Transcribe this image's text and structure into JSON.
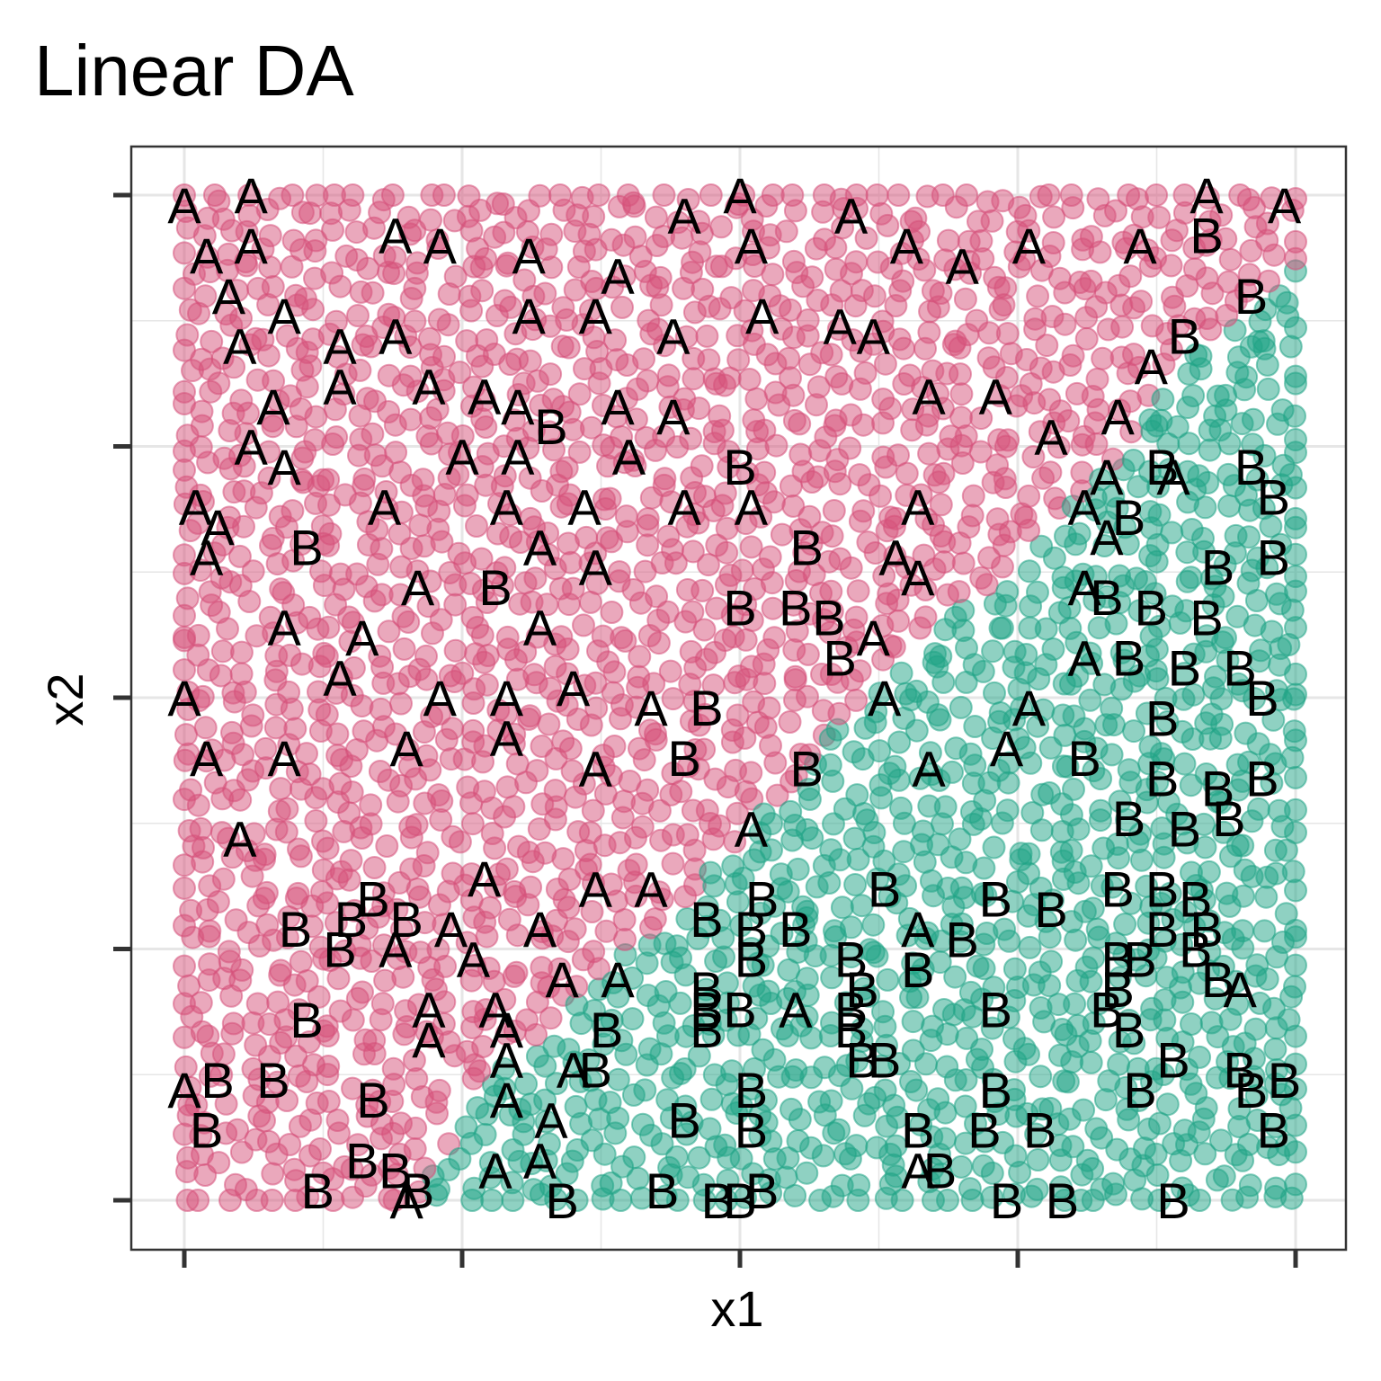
{
  "chart_data": {
    "type": "scatter",
    "title": "Linear DA",
    "xlabel": "x1",
    "ylabel": "x2",
    "xlim": [
      0,
      1
    ],
    "ylim": [
      0,
      1
    ],
    "x_ticks": [
      0,
      0.25,
      0.5,
      0.75,
      1
    ],
    "y_ticks": [
      0,
      0.25,
      0.5,
      0.75,
      1
    ],
    "tick_labels_shown": false,
    "grid": true,
    "legend": "none",
    "regions": [
      {
        "name": "A",
        "color": "#D6517A"
      },
      {
        "name": "B",
        "color": "#20A486"
      }
    ],
    "boundary": [
      [
        0.21,
        0
      ],
      [
        0.26,
        0.1
      ],
      [
        0.33,
        0.18
      ],
      [
        0.45,
        0.3
      ],
      [
        0.55,
        0.42
      ],
      [
        0.65,
        0.55
      ],
      [
        0.74,
        0.62
      ],
      [
        0.84,
        0.74
      ],
      [
        0.92,
        0.86
      ],
      [
        1,
        0.93
      ]
    ],
    "labeled_points": [
      {
        "x": 0.0,
        "y": 0.99,
        "label": "A"
      },
      {
        "x": 0.06,
        "y": 1.0,
        "label": "A"
      },
      {
        "x": 0.02,
        "y": 0.94,
        "label": "A"
      },
      {
        "x": 0.06,
        "y": 0.95,
        "label": "A"
      },
      {
        "x": 0.04,
        "y": 0.9,
        "label": "A"
      },
      {
        "x": 0.19,
        "y": 0.96,
        "label": "A"
      },
      {
        "x": 0.23,
        "y": 0.95,
        "label": "A"
      },
      {
        "x": 0.31,
        "y": 0.94,
        "label": "A"
      },
      {
        "x": 0.39,
        "y": 0.92,
        "label": "A"
      },
      {
        "x": 0.45,
        "y": 0.98,
        "label": "A"
      },
      {
        "x": 0.5,
        "y": 1.0,
        "label": "A"
      },
      {
        "x": 0.51,
        "y": 0.95,
        "label": "A"
      },
      {
        "x": 0.6,
        "y": 0.98,
        "label": "A"
      },
      {
        "x": 0.65,
        "y": 0.95,
        "label": "A"
      },
      {
        "x": 0.7,
        "y": 0.93,
        "label": "A"
      },
      {
        "x": 0.76,
        "y": 0.95,
        "label": "A"
      },
      {
        "x": 0.86,
        "y": 0.95,
        "label": "A"
      },
      {
        "x": 0.92,
        "y": 1.0,
        "label": "A"
      },
      {
        "x": 0.99,
        "y": 0.99,
        "label": "A"
      },
      {
        "x": 0.92,
        "y": 0.96,
        "label": "B"
      },
      {
        "x": 0.96,
        "y": 0.9,
        "label": "B"
      },
      {
        "x": 0.09,
        "y": 0.88,
        "label": "A"
      },
      {
        "x": 0.05,
        "y": 0.85,
        "label": "A"
      },
      {
        "x": 0.14,
        "y": 0.85,
        "label": "A"
      },
      {
        "x": 0.19,
        "y": 0.86,
        "label": "A"
      },
      {
        "x": 0.31,
        "y": 0.88,
        "label": "A"
      },
      {
        "x": 0.37,
        "y": 0.88,
        "label": "A"
      },
      {
        "x": 0.44,
        "y": 0.86,
        "label": "A"
      },
      {
        "x": 0.52,
        "y": 0.88,
        "label": "A"
      },
      {
        "x": 0.59,
        "y": 0.87,
        "label": "A"
      },
      {
        "x": 0.62,
        "y": 0.86,
        "label": "A"
      },
      {
        "x": 0.9,
        "y": 0.86,
        "label": "B"
      },
      {
        "x": 0.87,
        "y": 0.83,
        "label": "A"
      },
      {
        "x": 0.08,
        "y": 0.79,
        "label": "A"
      },
      {
        "x": 0.14,
        "y": 0.81,
        "label": "A"
      },
      {
        "x": 0.22,
        "y": 0.81,
        "label": "A"
      },
      {
        "x": 0.27,
        "y": 0.8,
        "label": "A"
      },
      {
        "x": 0.3,
        "y": 0.79,
        "label": "A"
      },
      {
        "x": 0.33,
        "y": 0.77,
        "label": "B"
      },
      {
        "x": 0.39,
        "y": 0.79,
        "label": "A"
      },
      {
        "x": 0.44,
        "y": 0.78,
        "label": "A"
      },
      {
        "x": 0.67,
        "y": 0.8,
        "label": "A"
      },
      {
        "x": 0.73,
        "y": 0.8,
        "label": "A"
      },
      {
        "x": 0.78,
        "y": 0.76,
        "label": "A"
      },
      {
        "x": 0.84,
        "y": 0.78,
        "label": "A"
      },
      {
        "x": 0.06,
        "y": 0.75,
        "label": "A"
      },
      {
        "x": 0.09,
        "y": 0.73,
        "label": "A"
      },
      {
        "x": 0.25,
        "y": 0.74,
        "label": "A"
      },
      {
        "x": 0.3,
        "y": 0.74,
        "label": "A"
      },
      {
        "x": 0.4,
        "y": 0.74,
        "label": "A"
      },
      {
        "x": 0.5,
        "y": 0.73,
        "label": "B"
      },
      {
        "x": 0.83,
        "y": 0.72,
        "label": "A"
      },
      {
        "x": 0.88,
        "y": 0.73,
        "label": "B"
      },
      {
        "x": 0.89,
        "y": 0.72,
        "label": "A"
      },
      {
        "x": 0.01,
        "y": 0.69,
        "label": "A"
      },
      {
        "x": 0.03,
        "y": 0.67,
        "label": "A"
      },
      {
        "x": 0.18,
        "y": 0.69,
        "label": "A"
      },
      {
        "x": 0.29,
        "y": 0.69,
        "label": "A"
      },
      {
        "x": 0.36,
        "y": 0.69,
        "label": "A"
      },
      {
        "x": 0.45,
        "y": 0.69,
        "label": "A"
      },
      {
        "x": 0.51,
        "y": 0.69,
        "label": "A"
      },
      {
        "x": 0.66,
        "y": 0.69,
        "label": "A"
      },
      {
        "x": 0.81,
        "y": 0.69,
        "label": "A"
      },
      {
        "x": 0.96,
        "y": 0.73,
        "label": "B"
      },
      {
        "x": 0.98,
        "y": 0.7,
        "label": "B"
      },
      {
        "x": 0.02,
        "y": 0.64,
        "label": "A"
      },
      {
        "x": 0.11,
        "y": 0.65,
        "label": "B"
      },
      {
        "x": 0.32,
        "y": 0.65,
        "label": "A"
      },
      {
        "x": 0.37,
        "y": 0.63,
        "label": "A"
      },
      {
        "x": 0.56,
        "y": 0.65,
        "label": "B"
      },
      {
        "x": 0.64,
        "y": 0.64,
        "label": "A"
      },
      {
        "x": 0.66,
        "y": 0.62,
        "label": "A"
      },
      {
        "x": 0.83,
        "y": 0.66,
        "label": "A"
      },
      {
        "x": 0.85,
        "y": 0.68,
        "label": "B"
      },
      {
        "x": 0.93,
        "y": 0.63,
        "label": "B"
      },
      {
        "x": 0.98,
        "y": 0.64,
        "label": "B"
      },
      {
        "x": 0.21,
        "y": 0.61,
        "label": "A"
      },
      {
        "x": 0.28,
        "y": 0.61,
        "label": "B"
      },
      {
        "x": 0.5,
        "y": 0.59,
        "label": "B"
      },
      {
        "x": 0.55,
        "y": 0.59,
        "label": "B"
      },
      {
        "x": 0.58,
        "y": 0.58,
        "label": "B"
      },
      {
        "x": 0.81,
        "y": 0.61,
        "label": "A"
      },
      {
        "x": 0.83,
        "y": 0.6,
        "label": "B"
      },
      {
        "x": 0.87,
        "y": 0.59,
        "label": "B"
      },
      {
        "x": 0.92,
        "y": 0.58,
        "label": "B"
      },
      {
        "x": 0.09,
        "y": 0.57,
        "label": "A"
      },
      {
        "x": 0.16,
        "y": 0.56,
        "label": "A"
      },
      {
        "x": 0.32,
        "y": 0.57,
        "label": "A"
      },
      {
        "x": 0.62,
        "y": 0.56,
        "label": "A"
      },
      {
        "x": 0.59,
        "y": 0.54,
        "label": "B"
      },
      {
        "x": 0.81,
        "y": 0.54,
        "label": "A"
      },
      {
        "x": 0.85,
        "y": 0.54,
        "label": "B"
      },
      {
        "x": 0.9,
        "y": 0.53,
        "label": "B"
      },
      {
        "x": 0.95,
        "y": 0.53,
        "label": "B"
      },
      {
        "x": 0.0,
        "y": 0.5,
        "label": "A"
      },
      {
        "x": 0.14,
        "y": 0.52,
        "label": "A"
      },
      {
        "x": 0.23,
        "y": 0.5,
        "label": "A"
      },
      {
        "x": 0.29,
        "y": 0.5,
        "label": "A"
      },
      {
        "x": 0.35,
        "y": 0.51,
        "label": "A"
      },
      {
        "x": 0.42,
        "y": 0.49,
        "label": "A"
      },
      {
        "x": 0.47,
        "y": 0.49,
        "label": "B"
      },
      {
        "x": 0.63,
        "y": 0.5,
        "label": "A"
      },
      {
        "x": 0.76,
        "y": 0.49,
        "label": "A"
      },
      {
        "x": 0.88,
        "y": 0.48,
        "label": "B"
      },
      {
        "x": 0.97,
        "y": 0.5,
        "label": "B"
      },
      {
        "x": 0.02,
        "y": 0.44,
        "label": "A"
      },
      {
        "x": 0.09,
        "y": 0.44,
        "label": "A"
      },
      {
        "x": 0.2,
        "y": 0.45,
        "label": "A"
      },
      {
        "x": 0.29,
        "y": 0.46,
        "label": "A"
      },
      {
        "x": 0.37,
        "y": 0.43,
        "label": "A"
      },
      {
        "x": 0.45,
        "y": 0.44,
        "label": "B"
      },
      {
        "x": 0.56,
        "y": 0.43,
        "label": "B"
      },
      {
        "x": 0.67,
        "y": 0.43,
        "label": "A"
      },
      {
        "x": 0.74,
        "y": 0.45,
        "label": "A"
      },
      {
        "x": 0.81,
        "y": 0.44,
        "label": "B"
      },
      {
        "x": 0.88,
        "y": 0.42,
        "label": "B"
      },
      {
        "x": 0.93,
        "y": 0.41,
        "label": "B"
      },
      {
        "x": 0.97,
        "y": 0.42,
        "label": "B"
      },
      {
        "x": 0.05,
        "y": 0.36,
        "label": "A"
      },
      {
        "x": 0.51,
        "y": 0.37,
        "label": "A"
      },
      {
        "x": 0.85,
        "y": 0.38,
        "label": "B"
      },
      {
        "x": 0.9,
        "y": 0.37,
        "label": "B"
      },
      {
        "x": 0.94,
        "y": 0.38,
        "label": "B"
      },
      {
        "x": 0.17,
        "y": 0.3,
        "label": "B"
      },
      {
        "x": 0.27,
        "y": 0.32,
        "label": "A"
      },
      {
        "x": 0.37,
        "y": 0.31,
        "label": "A"
      },
      {
        "x": 0.42,
        "y": 0.31,
        "label": "A"
      },
      {
        "x": 0.52,
        "y": 0.3,
        "label": "B"
      },
      {
        "x": 0.63,
        "y": 0.31,
        "label": "B"
      },
      {
        "x": 0.73,
        "y": 0.3,
        "label": "B"
      },
      {
        "x": 0.78,
        "y": 0.29,
        "label": "B"
      },
      {
        "x": 0.84,
        "y": 0.31,
        "label": "B"
      },
      {
        "x": 0.88,
        "y": 0.31,
        "label": "B"
      },
      {
        "x": 0.91,
        "y": 0.3,
        "label": "B"
      },
      {
        "x": 0.1,
        "y": 0.27,
        "label": "B"
      },
      {
        "x": 0.15,
        "y": 0.28,
        "label": "B"
      },
      {
        "x": 0.2,
        "y": 0.28,
        "label": "B"
      },
      {
        "x": 0.24,
        "y": 0.27,
        "label": "A"
      },
      {
        "x": 0.32,
        "y": 0.27,
        "label": "A"
      },
      {
        "x": 0.47,
        "y": 0.28,
        "label": "B"
      },
      {
        "x": 0.51,
        "y": 0.27,
        "label": "B"
      },
      {
        "x": 0.55,
        "y": 0.27,
        "label": "B"
      },
      {
        "x": 0.66,
        "y": 0.27,
        "label": "A"
      },
      {
        "x": 0.7,
        "y": 0.26,
        "label": "B"
      },
      {
        "x": 0.88,
        "y": 0.27,
        "label": "B"
      },
      {
        "x": 0.92,
        "y": 0.27,
        "label": "B"
      },
      {
        "x": 0.14,
        "y": 0.25,
        "label": "B"
      },
      {
        "x": 0.19,
        "y": 0.25,
        "label": "A"
      },
      {
        "x": 0.26,
        "y": 0.24,
        "label": "A"
      },
      {
        "x": 0.51,
        "y": 0.24,
        "label": "B"
      },
      {
        "x": 0.6,
        "y": 0.24,
        "label": "B"
      },
      {
        "x": 0.66,
        "y": 0.23,
        "label": "B"
      },
      {
        "x": 0.84,
        "y": 0.24,
        "label": "B"
      },
      {
        "x": 0.86,
        "y": 0.24,
        "label": "B"
      },
      {
        "x": 0.91,
        "y": 0.25,
        "label": "B"
      },
      {
        "x": 0.34,
        "y": 0.22,
        "label": "A"
      },
      {
        "x": 0.39,
        "y": 0.22,
        "label": "A"
      },
      {
        "x": 0.47,
        "y": 0.21,
        "label": "B"
      },
      {
        "x": 0.61,
        "y": 0.21,
        "label": "B"
      },
      {
        "x": 0.84,
        "y": 0.21,
        "label": "B"
      },
      {
        "x": 0.93,
        "y": 0.22,
        "label": "B"
      },
      {
        "x": 0.95,
        "y": 0.21,
        "label": "A"
      },
      {
        "x": 0.22,
        "y": 0.19,
        "label": "A"
      },
      {
        "x": 0.28,
        "y": 0.19,
        "label": "A"
      },
      {
        "x": 0.47,
        "y": 0.19,
        "label": "B"
      },
      {
        "x": 0.5,
        "y": 0.19,
        "label": "B"
      },
      {
        "x": 0.55,
        "y": 0.19,
        "label": "A"
      },
      {
        "x": 0.6,
        "y": 0.19,
        "label": "B"
      },
      {
        "x": 0.73,
        "y": 0.19,
        "label": "B"
      },
      {
        "x": 0.83,
        "y": 0.19,
        "label": "B"
      },
      {
        "x": 0.11,
        "y": 0.18,
        "label": "B"
      },
      {
        "x": 0.22,
        "y": 0.16,
        "label": "A"
      },
      {
        "x": 0.29,
        "y": 0.17,
        "label": "A"
      },
      {
        "x": 0.38,
        "y": 0.17,
        "label": "B"
      },
      {
        "x": 0.47,
        "y": 0.17,
        "label": "B"
      },
      {
        "x": 0.6,
        "y": 0.17,
        "label": "B"
      },
      {
        "x": 0.85,
        "y": 0.17,
        "label": "B"
      },
      {
        "x": 0.29,
        "y": 0.14,
        "label": "A"
      },
      {
        "x": 0.35,
        "y": 0.13,
        "label": "A"
      },
      {
        "x": 0.37,
        "y": 0.13,
        "label": "B"
      },
      {
        "x": 0.61,
        "y": 0.14,
        "label": "B"
      },
      {
        "x": 0.63,
        "y": 0.14,
        "label": "B"
      },
      {
        "x": 0.89,
        "y": 0.14,
        "label": "B"
      },
      {
        "x": 0.95,
        "y": 0.13,
        "label": "B"
      },
      {
        "x": 0.99,
        "y": 0.12,
        "label": "B"
      },
      {
        "x": 0.03,
        "y": 0.12,
        "label": "B"
      },
      {
        "x": 0.08,
        "y": 0.12,
        "label": "B"
      },
      {
        "x": 0.0,
        "y": 0.11,
        "label": "A"
      },
      {
        "x": 0.17,
        "y": 0.1,
        "label": "B"
      },
      {
        "x": 0.29,
        "y": 0.1,
        "label": "A"
      },
      {
        "x": 0.51,
        "y": 0.11,
        "label": "B"
      },
      {
        "x": 0.73,
        "y": 0.11,
        "label": "B"
      },
      {
        "x": 0.86,
        "y": 0.11,
        "label": "B"
      },
      {
        "x": 0.96,
        "y": 0.11,
        "label": "B"
      },
      {
        "x": 0.02,
        "y": 0.07,
        "label": "B"
      },
      {
        "x": 0.33,
        "y": 0.08,
        "label": "A"
      },
      {
        "x": 0.45,
        "y": 0.08,
        "label": "B"
      },
      {
        "x": 0.51,
        "y": 0.07,
        "label": "B"
      },
      {
        "x": 0.66,
        "y": 0.07,
        "label": "B"
      },
      {
        "x": 0.72,
        "y": 0.07,
        "label": "B"
      },
      {
        "x": 0.77,
        "y": 0.07,
        "label": "B"
      },
      {
        "x": 0.98,
        "y": 0.07,
        "label": "B"
      },
      {
        "x": 0.16,
        "y": 0.04,
        "label": "B"
      },
      {
        "x": 0.19,
        "y": 0.03,
        "label": "B"
      },
      {
        "x": 0.28,
        "y": 0.03,
        "label": "A"
      },
      {
        "x": 0.32,
        "y": 0.04,
        "label": "A"
      },
      {
        "x": 0.66,
        "y": 0.03,
        "label": "A"
      },
      {
        "x": 0.68,
        "y": 0.03,
        "label": "B"
      },
      {
        "x": 0.12,
        "y": 0.01,
        "label": "B"
      },
      {
        "x": 0.2,
        "y": 0.0,
        "label": "A"
      },
      {
        "x": 0.21,
        "y": 0.01,
        "label": "B"
      },
      {
        "x": 0.34,
        "y": 0.0,
        "label": "B"
      },
      {
        "x": 0.43,
        "y": 0.01,
        "label": "B"
      },
      {
        "x": 0.48,
        "y": 0.0,
        "label": "B"
      },
      {
        "x": 0.5,
        "y": 0.0,
        "label": "B"
      },
      {
        "x": 0.52,
        "y": 0.01,
        "label": "B"
      },
      {
        "x": 0.74,
        "y": 0.0,
        "label": "B"
      },
      {
        "x": 0.79,
        "y": 0.0,
        "label": "B"
      },
      {
        "x": 0.89,
        "y": 0.0,
        "label": "B"
      }
    ]
  }
}
